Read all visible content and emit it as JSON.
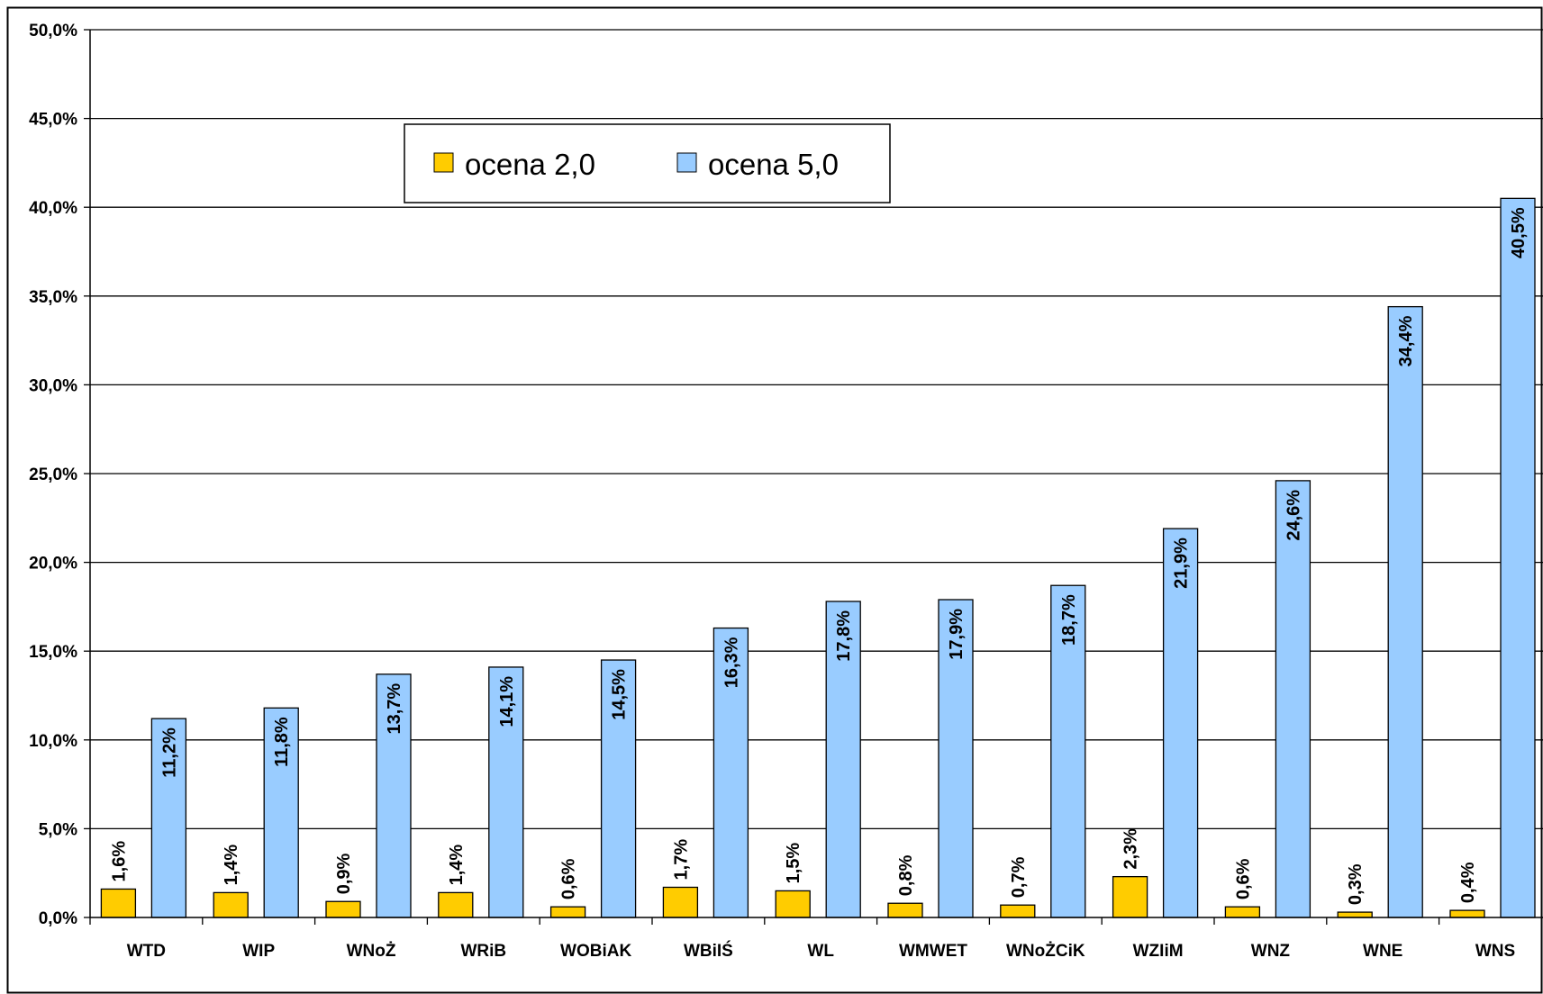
{
  "chart_data": {
    "type": "bar",
    "categories": [
      "WTD",
      "WIP",
      "WNoŻ",
      "WRiB",
      "WOBiAK",
      "WBiIŚ",
      "WL",
      "WMWET",
      "WNoŻCiK",
      "WZIiM",
      "WNZ",
      "WNE",
      "WNS"
    ],
    "series": [
      {
        "name": "ocena 2,0",
        "color": "#ffcc00",
        "values": [
          1.6,
          1.4,
          0.9,
          1.4,
          0.6,
          1.7,
          1.5,
          0.8,
          0.7,
          2.3,
          0.6,
          0.3,
          0.4
        ],
        "labels": [
          "1,6%",
          "1,4%",
          "0,9%",
          "1,4%",
          "0,6%",
          "1,7%",
          "1,5%",
          "0,8%",
          "0,7%",
          "2,3%",
          "0,6%",
          "0,3%",
          "0,4%"
        ]
      },
      {
        "name": "ocena 5,0",
        "color": "#99ccff",
        "values": [
          11.2,
          11.8,
          13.7,
          14.1,
          14.5,
          16.3,
          17.8,
          17.9,
          18.7,
          21.9,
          24.6,
          34.4,
          40.5
        ],
        "labels": [
          "11,2%",
          "11,8%",
          "13,7%",
          "14,1%",
          "14,5%",
          "16,3%",
          "17,8%",
          "17,9%",
          "18,7%",
          "21,9%",
          "24,6%",
          "34,4%",
          "40,5%"
        ]
      }
    ],
    "ylim": [
      0,
      50
    ],
    "yticks": [
      0,
      5,
      10,
      15,
      20,
      25,
      30,
      35,
      40,
      45,
      50
    ],
    "ytick_labels": [
      "0,0%",
      "5,0%",
      "10,0%",
      "15,0%",
      "20,0%",
      "25,0%",
      "30,0%",
      "35,0%",
      "40,0%",
      "45,0%",
      "50,0%"
    ],
    "grid": true,
    "legend_position": "top-center",
    "title": "",
    "xlabel": "",
    "ylabel": ""
  }
}
